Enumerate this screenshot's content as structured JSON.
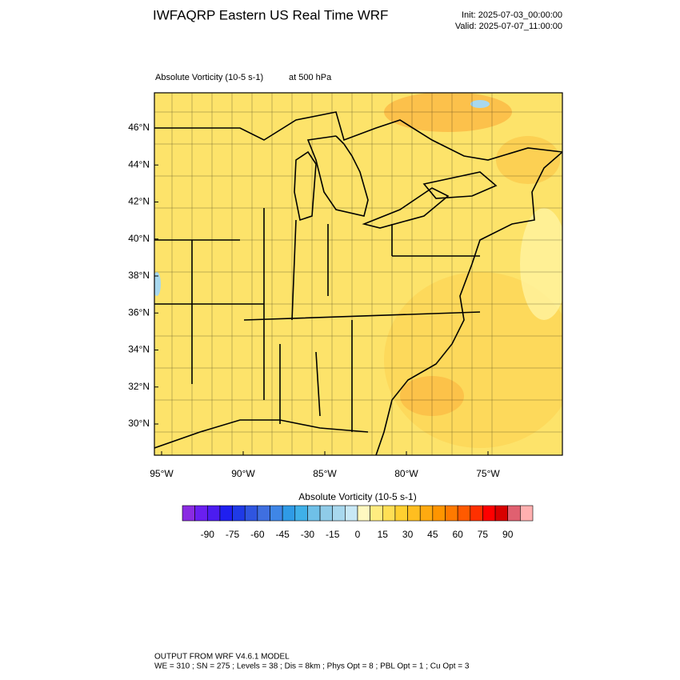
{
  "header": {
    "title": "IWFAQRP Eastern US Real Time WRF",
    "init": "Init: 2025-07-03_00:00:00",
    "valid": "Valid: 2025-07-07_11:00:00"
  },
  "map": {
    "field": "Absolute Vorticity   (10-5 s-1)",
    "level": "at   500 hPa",
    "lat_labels": [
      "46°N",
      "44°N",
      "42°N",
      "40°N",
      "38°N",
      "36°N",
      "34°N",
      "32°N",
      "30°N"
    ],
    "lon_labels": [
      "95°W",
      "90°W",
      "85°W",
      "80°W",
      "75°W"
    ]
  },
  "colorbar": {
    "title": "Absolute Vorticity  (10-5 s-1)",
    "range": [
      -105,
      105
    ],
    "ticks": [
      -90,
      -75,
      -60,
      -45,
      -30,
      -15,
      0,
      15,
      30,
      45,
      60,
      75,
      90
    ],
    "colors": [
      "#8a2be2",
      "#6a1ff0",
      "#4c1cf0",
      "#1f1ff0",
      "#1f3ae6",
      "#2f55e0",
      "#3f6fe0",
      "#3f86e6",
      "#2f9be6",
      "#3fb0e8",
      "#6fc0e8",
      "#8fcbe8",
      "#a8d8ee",
      "#c8e8f6",
      "#fff8c0",
      "#ffec80",
      "#ffdf55",
      "#ffd030",
      "#ffbe20",
      "#ffaa10",
      "#ff9500",
      "#ff7a00",
      "#ff5a00",
      "#ff3000",
      "#ff0000",
      "#d80000",
      "#e06070",
      "#ffb0b0"
    ]
  },
  "footer": {
    "line1": "OUTPUT FROM WRF V4.6.1 MODEL",
    "line2": "WE = 310 ; SN = 275 ; Levels = 38 ; Dis = 8km ; Phys Opt = 8 ; PBL Opt = 1 ; Cu Opt = 3"
  }
}
